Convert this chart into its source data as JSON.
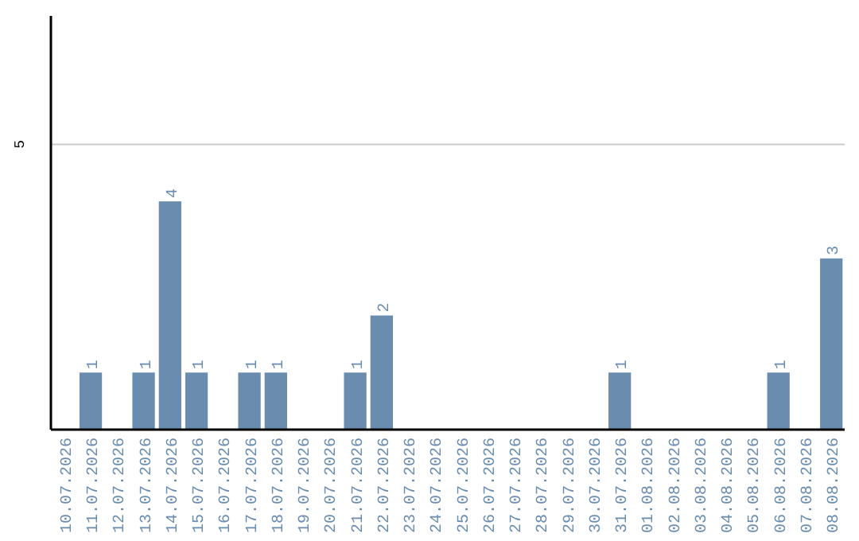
{
  "chart_data": {
    "type": "bar",
    "categories": [
      "10.07.2026",
      "11.07.2026",
      "12.07.2026",
      "13.07.2026",
      "14.07.2026",
      "15.07.2026",
      "16.07.2026",
      "17.07.2026",
      "18.07.2026",
      "19.07.2026",
      "20.07.2026",
      "21.07.2026",
      "22.07.2026",
      "23.07.2026",
      "24.07.2026",
      "25.07.2026",
      "26.07.2026",
      "27.07.2026",
      "28.07.2026",
      "29.07.2026",
      "30.07.2026",
      "31.07.2026",
      "01.08.2026",
      "02.08.2026",
      "03.08.2026",
      "04.08.2026",
      "05.08.2026",
      "06.08.2026",
      "07.08.2026",
      "08.08.2026"
    ],
    "values": [
      0,
      1,
      0,
      1,
      4,
      1,
      0,
      1,
      1,
      0,
      0,
      1,
      2,
      0,
      0,
      0,
      0,
      0,
      0,
      0,
      0,
      1,
      0,
      0,
      0,
      0,
      0,
      1,
      0,
      3
    ],
    "value_labels": [
      null,
      "1",
      null,
      "1",
      "4",
      "1",
      null,
      "1",
      "1",
      null,
      null,
      "1",
      "2",
      null,
      null,
      null,
      null,
      null,
      null,
      null,
      null,
      "1",
      null,
      null,
      null,
      null,
      null,
      "1",
      null,
      "3"
    ],
    "color": "#6a8caf",
    "ylim": [
      0,
      7.25
    ],
    "yticks": [
      5
    ],
    "grid": "y"
  }
}
